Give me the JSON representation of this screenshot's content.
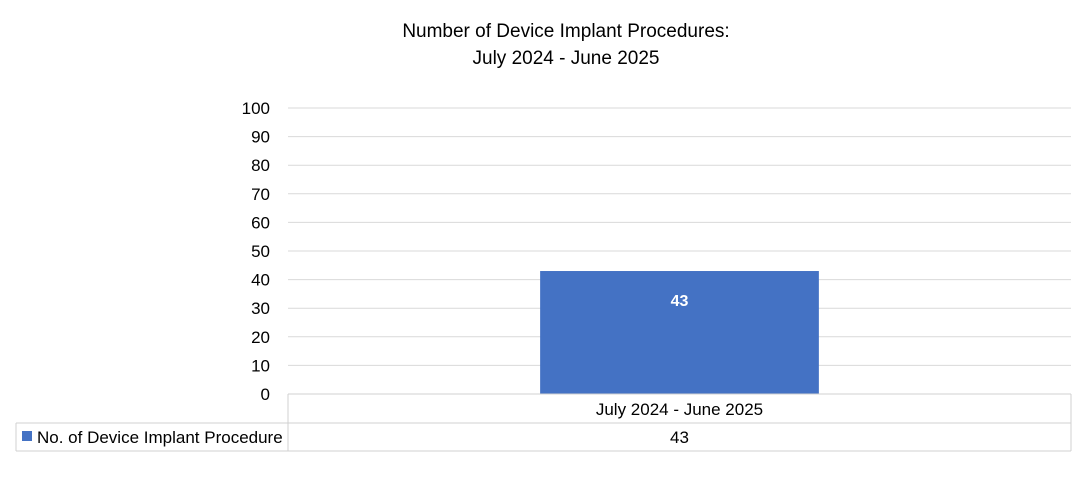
{
  "chart_data": {
    "type": "bar",
    "title_lines": [
      "Number of Device Implant Procedures:",
      "July 2024 - June 2025"
    ],
    "categories": [
      "July 2024 - June 2025"
    ],
    "series": [
      {
        "name": "No. of Device Implant Procedure",
        "values": [
          43
        ],
        "color": "#4472C4"
      }
    ],
    "data_labels": [
      "43"
    ],
    "ylim": [
      0,
      100
    ],
    "yticks": [
      0,
      10,
      20,
      30,
      40,
      50,
      60,
      70,
      80,
      90,
      100
    ],
    "grid": true,
    "legend": "data-table",
    "data_table": {
      "row_label": "No. of Device Implant Procedure",
      "values": [
        "43"
      ]
    }
  }
}
